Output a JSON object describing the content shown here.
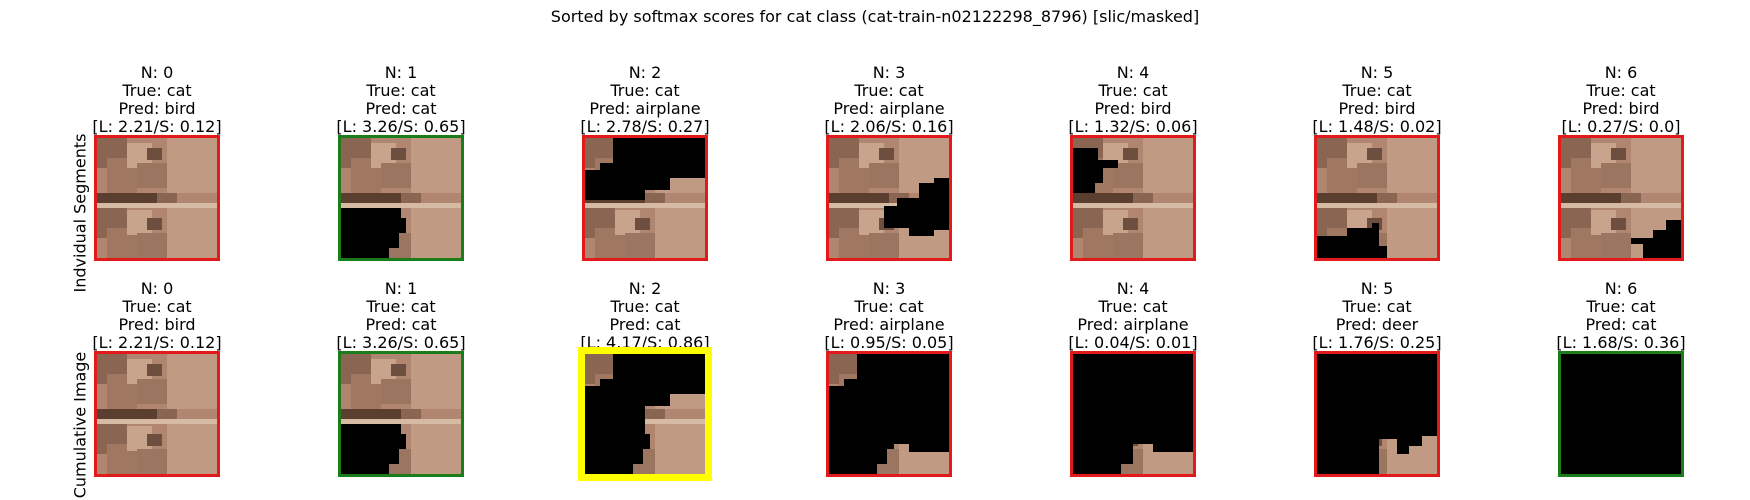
{
  "title": "Sorted by softmax scores for cat class (cat-train-n02122298_8796) [slic/masked]",
  "rows": [
    {
      "label": "Indvidual Segments",
      "panels": [
        {
          "n": "N: 0",
          "true_label": "True: cat",
          "pred": "Pred: bird",
          "scores": "[L: 2.21/S: 0.12]",
          "border": "#e31a1c",
          "mask": "none"
        },
        {
          "n": "N: 1",
          "true_label": "True: cat",
          "pred": "Pred: cat",
          "scores": "[L: 3.26/S: 0.65]",
          "border": "#1a7d1a",
          "mask": "bottom-left"
        },
        {
          "n": "N: 2",
          "true_label": "True: cat",
          "pred": "Pred: airplane",
          "scores": "[L: 2.78/S: 0.27]",
          "border": "#e31a1c",
          "mask": "top"
        },
        {
          "n": "N: 3",
          "true_label": "True: cat",
          "pred": "Pred: airplane",
          "scores": "[L: 2.06/S: 0.16]",
          "border": "#e31a1c",
          "mask": "right-middle"
        },
        {
          "n": "N: 4",
          "true_label": "True: cat",
          "pred": "Pred: bird",
          "scores": "[L: 1.32/S: 0.06]",
          "border": "#e31a1c",
          "mask": "top-left-small"
        },
        {
          "n": "N: 5",
          "true_label": "True: cat",
          "pred": "Pred: bird",
          "scores": "[L: 1.48/S: 0.02]",
          "border": "#e31a1c",
          "mask": "bottom-left-small"
        },
        {
          "n": "N: 6",
          "true_label": "True: cat",
          "pred": "Pred: bird",
          "scores": "[L: 0.27/S: 0.0]",
          "border": "#e31a1c",
          "mask": "bottom-right"
        }
      ]
    },
    {
      "label": "Cumulative Image",
      "panels": [
        {
          "n": "N: 0",
          "true_label": "True: cat",
          "pred": "Pred: bird",
          "scores": "[L: 2.21/S: 0.12]",
          "border": "#e31a1c",
          "mask": "none"
        },
        {
          "n": "N: 1",
          "true_label": "True: cat",
          "pred": "Pred: cat",
          "scores": "[L: 3.26/S: 0.65]",
          "border": "#1a7d1a",
          "mask": "bottom-left"
        },
        {
          "n": "N: 2",
          "true_label": "True: cat",
          "pred": "Pred: cat",
          "scores": "[L: 4.17/S: 0.86]",
          "border": "#ffff00",
          "mask": "cum2"
        },
        {
          "n": "N: 3",
          "true_label": "True: cat",
          "pred": "Pred: airplane",
          "scores": "[L: 0.95/S: 0.05]",
          "border": "#e31a1c",
          "mask": "cum3"
        },
        {
          "n": "N: 4",
          "true_label": "True: cat",
          "pred": "Pred: airplane",
          "scores": "[L: 0.04/S: 0.01]",
          "border": "#e31a1c",
          "mask": "cum4"
        },
        {
          "n": "N: 5",
          "true_label": "True: cat",
          "pred": "Pred: deer",
          "scores": "[L: 1.76/S: 0.25]",
          "border": "#e31a1c",
          "mask": "cum5"
        },
        {
          "n": "N: 6",
          "true_label": "True: cat",
          "pred": "Pred: cat",
          "scores": "[L: 1.68/S: 0.36]",
          "border": "#1a7d1a",
          "mask": "all"
        }
      ]
    }
  ]
}
